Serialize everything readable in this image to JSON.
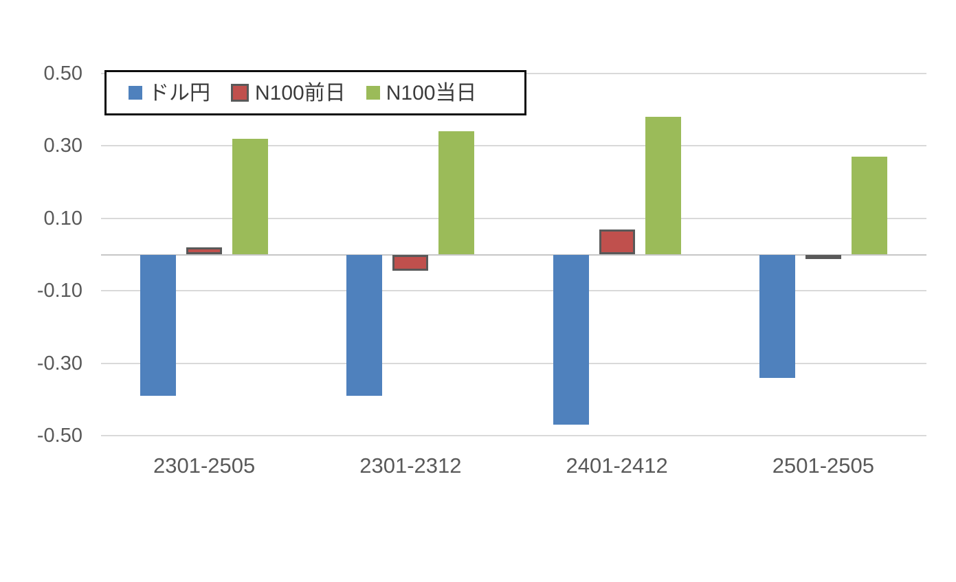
{
  "chart_data": {
    "type": "bar",
    "title": "",
    "xlabel": "",
    "ylabel": "",
    "categories": [
      "2301-2505",
      "2301-2312",
      "2401-2412",
      "2501-2505"
    ],
    "series": [
      {
        "id": "dollar-yen",
        "name": "ドル円",
        "color": "#4F81BD",
        "values": [
          -0.39,
          -0.39,
          -0.47,
          -0.34
        ]
      },
      {
        "id": "n100-previous-day",
        "name": "N100前日",
        "color": "#C0504D",
        "border_color": "#595959",
        "values": [
          0.02,
          -0.045,
          0.07,
          -0.005
        ]
      },
      {
        "id": "n100-same-day",
        "name": "N100当日",
        "color": "#9BBB59",
        "values": [
          0.32,
          0.34,
          0.38,
          0.27
        ]
      }
    ],
    "ylim": [
      -0.5,
      0.5
    ],
    "yticks": [
      {
        "value": 0.5,
        "label": "0.50"
      },
      {
        "value": 0.3,
        "label": "0.30"
      },
      {
        "value": 0.1,
        "label": "0.10"
      },
      {
        "value": -0.1,
        "label": "-0.10"
      },
      {
        "value": -0.3,
        "label": "-0.30"
      },
      {
        "value": -0.5,
        "label": "-0.50"
      }
    ],
    "grid": true,
    "legend_position": "top-left"
  },
  "styles": {
    "background": "#FFFFFF",
    "gridline_color": "#D9D9D9",
    "axis_line_color": "#C6C6C6",
    "tick_label_color": "#595959",
    "legend_text_color": "#3B3B3B",
    "legend_border_color": "#0D0D0D"
  }
}
